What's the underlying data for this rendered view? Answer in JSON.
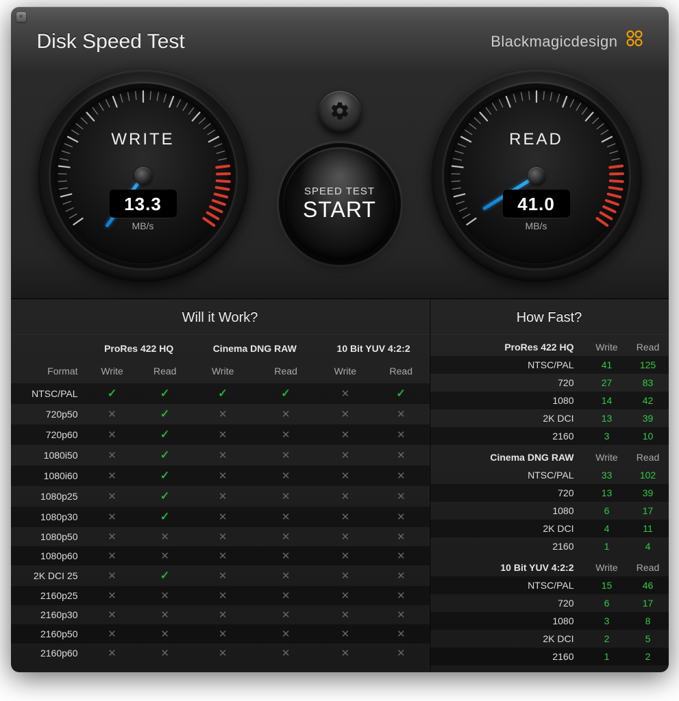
{
  "app": {
    "title": "Disk Speed Test",
    "brand": "Blackmagicdesign"
  },
  "gauges": {
    "write": {
      "label": "WRITE",
      "value": "13.3",
      "unit": "MB/s",
      "needle_angle_deg": 36
    },
    "read": {
      "label": "READ",
      "value": "41.0",
      "unit": "MB/s",
      "needle_angle_deg": 58
    },
    "tick_color": "#cccccc",
    "redzone_color": "#d93a2b",
    "needle_color": "#2aa8f2"
  },
  "buttons": {
    "settings_label": "Settings",
    "start_small": "SPEED TEST",
    "start_big": "START"
  },
  "willItWork": {
    "title": "Will it Work?",
    "codecs": [
      "ProRes 422 HQ",
      "Cinema DNG RAW",
      "10 Bit YUV 4:2:2"
    ],
    "subcols": [
      "Write",
      "Read"
    ],
    "format_label": "Format",
    "rows": [
      {
        "format": "NTSC/PAL",
        "cells": [
          true,
          true,
          true,
          true,
          false,
          true
        ]
      },
      {
        "format": "720p50",
        "cells": [
          false,
          true,
          false,
          false,
          false,
          false
        ]
      },
      {
        "format": "720p60",
        "cells": [
          false,
          true,
          false,
          false,
          false,
          false
        ]
      },
      {
        "format": "1080i50",
        "cells": [
          false,
          true,
          false,
          false,
          false,
          false
        ]
      },
      {
        "format": "1080i60",
        "cells": [
          false,
          true,
          false,
          false,
          false,
          false
        ]
      },
      {
        "format": "1080p25",
        "cells": [
          false,
          true,
          false,
          false,
          false,
          false
        ]
      },
      {
        "format": "1080p30",
        "cells": [
          false,
          true,
          false,
          false,
          false,
          false
        ]
      },
      {
        "format": "1080p50",
        "cells": [
          false,
          false,
          false,
          false,
          false,
          false
        ]
      },
      {
        "format": "1080p60",
        "cells": [
          false,
          false,
          false,
          false,
          false,
          false
        ]
      },
      {
        "format": "2K DCI 25",
        "cells": [
          false,
          true,
          false,
          false,
          false,
          false
        ]
      },
      {
        "format": "2160p25",
        "cells": [
          false,
          false,
          false,
          false,
          false,
          false
        ]
      },
      {
        "format": "2160p30",
        "cells": [
          false,
          false,
          false,
          false,
          false,
          false
        ]
      },
      {
        "format": "2160p50",
        "cells": [
          false,
          false,
          false,
          false,
          false,
          false
        ]
      },
      {
        "format": "2160p60",
        "cells": [
          false,
          false,
          false,
          false,
          false,
          false
        ]
      }
    ],
    "check_glyph": "✓",
    "cross_glyph": "✕",
    "check_color": "#2ecc40",
    "cross_color": "#666666"
  },
  "howFast": {
    "title": "How Fast?",
    "subcols": [
      "Write",
      "Read"
    ],
    "groups": [
      {
        "name": "ProRes 422 HQ",
        "rows": [
          {
            "format": "NTSC/PAL",
            "write": 41,
            "read": 125
          },
          {
            "format": "720",
            "write": 27,
            "read": 83
          },
          {
            "format": "1080",
            "write": 14,
            "read": 42
          },
          {
            "format": "2K DCI",
            "write": 13,
            "read": 39
          },
          {
            "format": "2160",
            "write": 3,
            "read": 10
          }
        ]
      },
      {
        "name": "Cinema DNG RAW",
        "rows": [
          {
            "format": "NTSC/PAL",
            "write": 33,
            "read": 102
          },
          {
            "format": "720",
            "write": 13,
            "read": 39
          },
          {
            "format": "1080",
            "write": 6,
            "read": 17
          },
          {
            "format": "2K DCI",
            "write": 4,
            "read": 11
          },
          {
            "format": "2160",
            "write": 1,
            "read": 4
          }
        ]
      },
      {
        "name": "10 Bit YUV 4:2:2",
        "rows": [
          {
            "format": "NTSC/PAL",
            "write": 15,
            "read": 46
          },
          {
            "format": "720",
            "write": 6,
            "read": 17
          },
          {
            "format": "1080",
            "write": 3,
            "read": 8
          },
          {
            "format": "2K DCI",
            "write": 2,
            "read": 5
          },
          {
            "format": "2160",
            "write": 1,
            "read": 2
          }
        ]
      }
    ],
    "value_color": "#2ecc40"
  },
  "colors": {
    "window_bg_top": "#4a4a4a",
    "window_bg_bottom": "#1a1a1a",
    "text": "#dddddd",
    "dim_text": "#aaaaaa"
  }
}
